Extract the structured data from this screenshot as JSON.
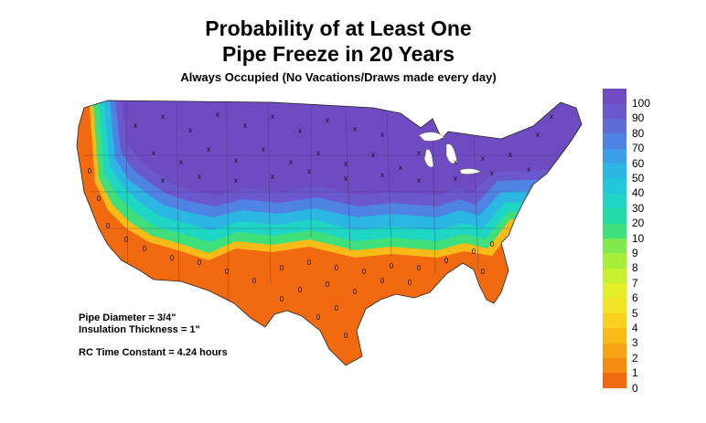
{
  "title_line1": "Probability of at Least One",
  "title_line2": "Pipe Freeze in 20 Years",
  "subtitle": "Always Occupied (No Vacations/Draws made every day)",
  "params": {
    "pipe_diameter": "Pipe Diameter = 3/4\"",
    "insulation": "Insulation Thickness = 1\"",
    "rc_time": "RC Time Constant = 4.24 hours"
  },
  "legend": [
    {
      "label": "100",
      "color": "#6f4bc2"
    },
    {
      "label": "90",
      "color": "#6a58cc"
    },
    {
      "label": "80",
      "color": "#5f6cd8"
    },
    {
      "label": "70",
      "color": "#4f83e3"
    },
    {
      "label": "60",
      "color": "#3c9ee6"
    },
    {
      "label": "50",
      "color": "#2bb6e4"
    },
    {
      "label": "40",
      "color": "#22c8da"
    },
    {
      "label": "30",
      "color": "#1fd5c4"
    },
    {
      "label": "20",
      "color": "#22dba6"
    },
    {
      "label": "10",
      "color": "#3fe07c"
    },
    {
      "label": "9",
      "color": "#7fe84c"
    },
    {
      "label": "8",
      "color": "#a6ee38"
    },
    {
      "label": "7",
      "color": "#c8f02e"
    },
    {
      "label": "6",
      "color": "#e4ef2a"
    },
    {
      "label": "5",
      "color": "#f3e526"
    },
    {
      "label": "4",
      "color": "#f7d11e"
    },
    {
      "label": "3",
      "color": "#f8bb18"
    },
    {
      "label": "2",
      "color": "#f7a414"
    },
    {
      "label": "1",
      "color": "#f68c12"
    },
    {
      "label": "0",
      "color": "#f26a10"
    }
  ],
  "station_markers": {
    "high": "x",
    "low": "0"
  }
}
